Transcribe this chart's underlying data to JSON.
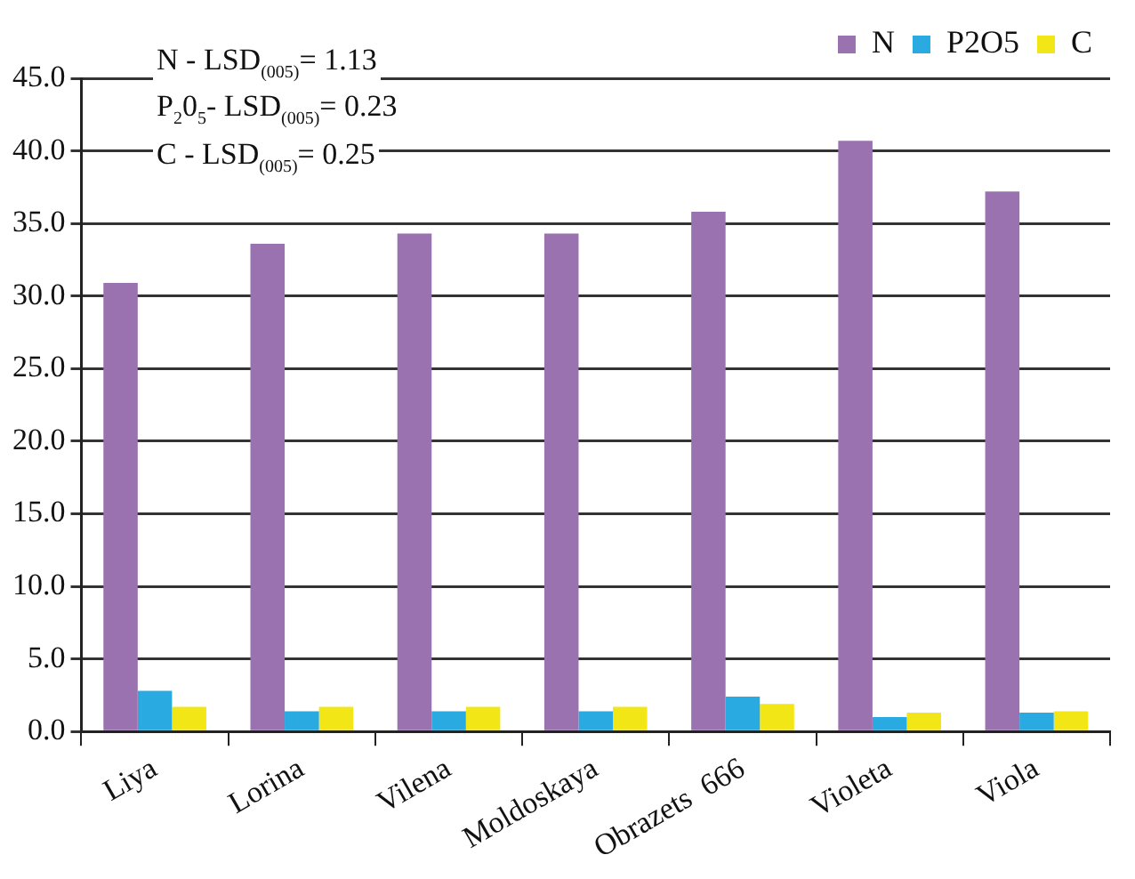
{
  "chart_data": {
    "type": "bar",
    "categories": [
      "Liya",
      "Lorina",
      "Vilena",
      "Moldoskaya",
      "Obrazets  666",
      "Violeta",
      "Viola"
    ],
    "series": [
      {
        "name": "N",
        "color": "#9b72b0",
        "values": [
          30.9,
          33.6,
          34.3,
          34.3,
          35.8,
          40.7,
          37.2
        ]
      },
      {
        "name": "P2O5",
        "color": "#29abe2",
        "values": [
          2.8,
          1.4,
          1.4,
          1.4,
          2.4,
          1.0,
          1.3
        ]
      },
      {
        "name": "C",
        "color": "#f2e617",
        "values": [
          1.7,
          1.7,
          1.7,
          1.7,
          1.9,
          1.3,
          1.4
        ]
      }
    ],
    "ylim": [
      0,
      45
    ],
    "yticks": [
      {
        "value": 0,
        "label": "0.0"
      },
      {
        "value": 5,
        "label": "5.0"
      },
      {
        "value": 10,
        "label": "10.0"
      },
      {
        "value": 15,
        "label": "15.0"
      },
      {
        "value": 20,
        "label": "20.0"
      },
      {
        "value": 25,
        "label": "25.0"
      },
      {
        "value": 30,
        "label": "30.0"
      },
      {
        "value": 35,
        "label": "35.0"
      },
      {
        "value": 40,
        "label": "40.0"
      },
      {
        "value": 45,
        "label": "45.0"
      }
    ],
    "grid": "y",
    "legend": "top right",
    "annotations": [
      "N - LSD$_{(005)}$= 1.13",
      "P$_{2}$0$_{5}$- LSD$_{(005)}$= 0.23",
      "C - LSD$_{(005)}$= 0.25"
    ]
  }
}
